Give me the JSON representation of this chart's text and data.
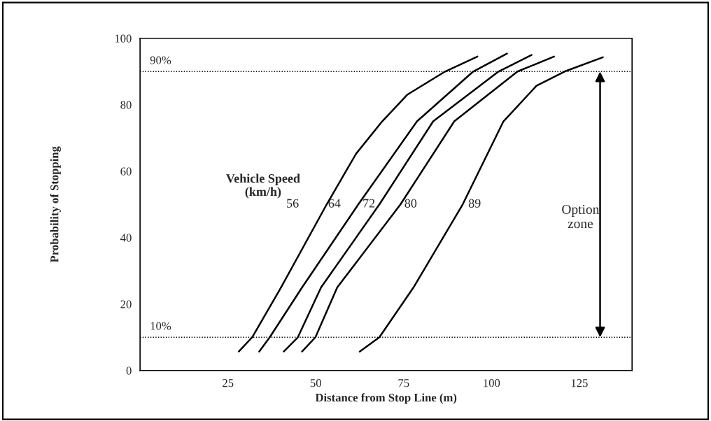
{
  "chart_data": {
    "type": "line",
    "xlabel": "Distance from Stop Line (m)",
    "ylabel": "Probability of Stopping",
    "xlim": [
      0,
      140
    ],
    "ylim": [
      0,
      100
    ],
    "xticks": [
      25,
      50,
      75,
      100,
      125
    ],
    "yticks": [
      0,
      20,
      40,
      60,
      80,
      100
    ],
    "grid": false,
    "legend": false,
    "marker": "none",
    "line_style": "solid",
    "series": [
      {
        "color": "#000000",
        "x": [
          28.1,
          31.9,
          40.1,
          53.1,
          61.5,
          68.9,
          76,
          86.8,
          96
        ],
        "values": [
          5.7,
          10,
          25,
          50,
          65.3,
          75,
          83,
          90,
          94.5
        ]
      },
      {
        "color": "#000000",
        "x": [
          33.9,
          36.9,
          46.1,
          62.1,
          78.8,
          94.8,
          104.4
        ],
        "values": [
          5.7,
          10,
          25,
          50,
          75,
          90,
          95.4
        ]
      },
      {
        "color": "#000000",
        "x": [
          40.9,
          44.9,
          51.5,
          68.1,
          83.4,
          102,
          111.4
        ],
        "values": [
          5.7,
          10,
          25,
          50,
          75,
          90,
          95
        ]
      },
      {
        "color": "#000000",
        "x": [
          46.1,
          49.9,
          56.1,
          74.1,
          89.4,
          107.4,
          117.8
        ],
        "values": [
          5.7,
          10,
          25,
          50,
          75,
          90,
          94.5
        ]
      },
      {
        "color": "#000000",
        "x": [
          62.5,
          68.1,
          77.8,
          91.8,
          103.4,
          112.8,
          120.8,
          131.7
        ],
        "values": [
          5.7,
          10,
          25,
          50,
          75,
          85.7,
          90,
          94.3
        ]
      }
    ],
    "ref_lines": [
      {
        "axis": "y",
        "value": 90,
        "label": "90%",
        "line_style": "dotted"
      },
      {
        "axis": "y",
        "value": 10,
        "label": "10%",
        "line_style": "dotted"
      }
    ],
    "annotations": [
      "Vehicle Speed\n(km/h)",
      "56",
      "64",
      "72",
      "80",
      "89",
      "Option\nzone"
    ]
  }
}
